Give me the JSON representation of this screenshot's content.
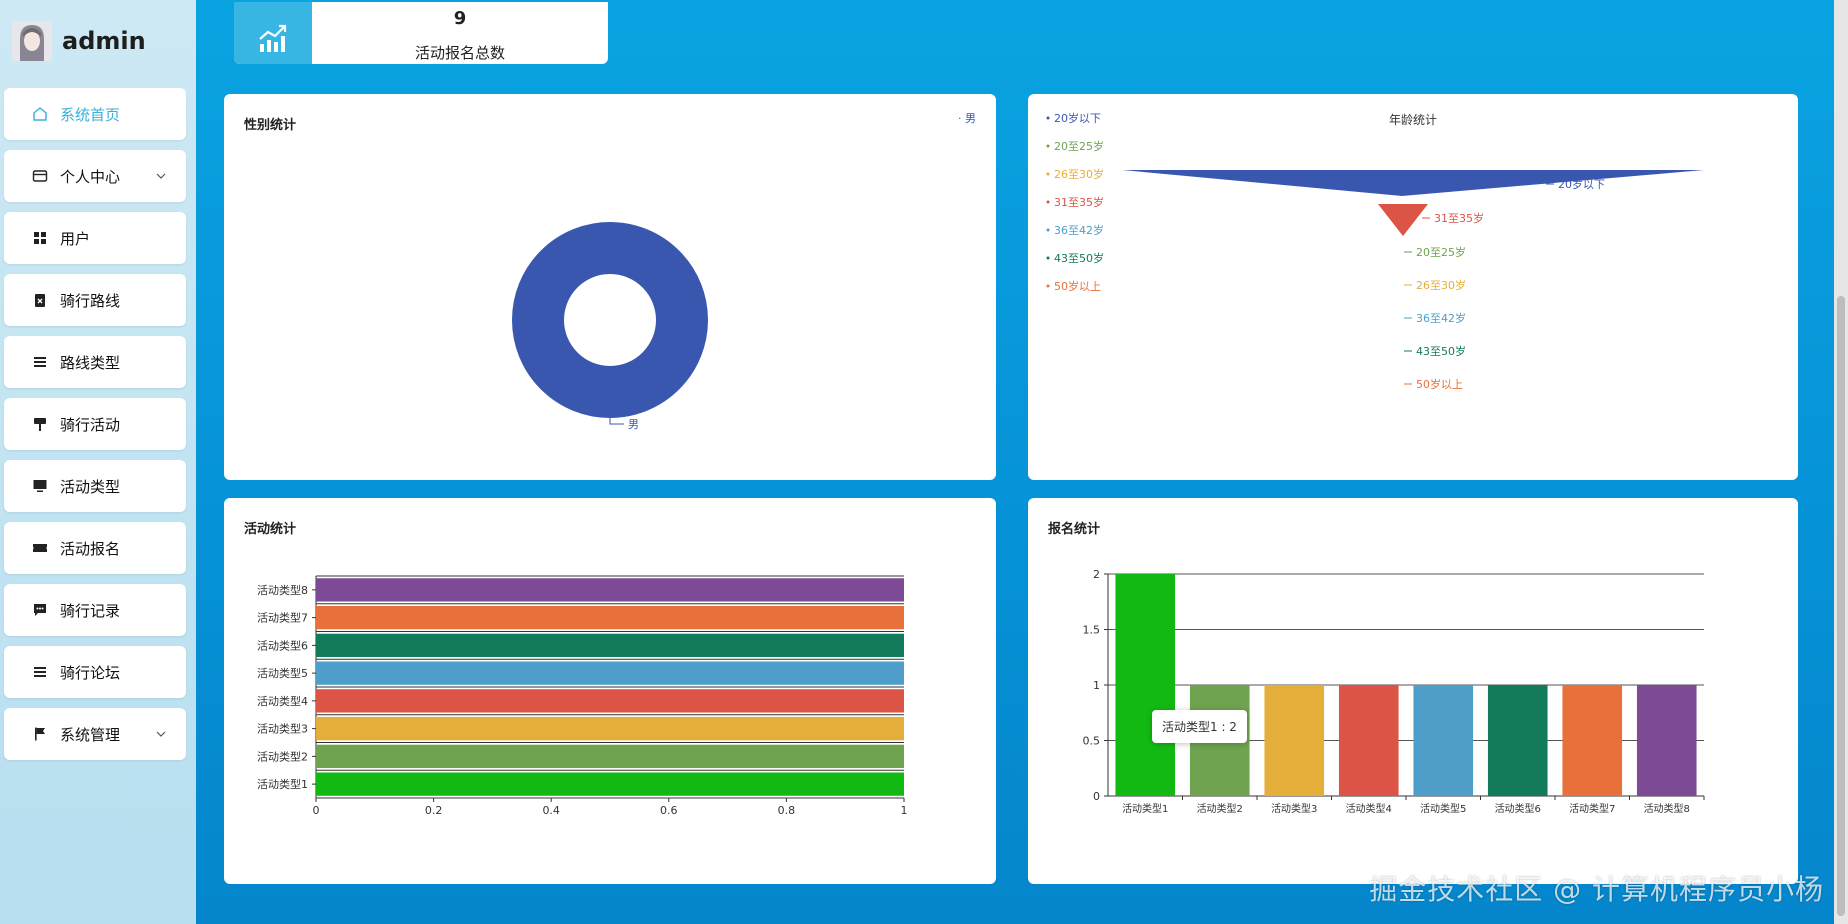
{
  "app": {
    "user_name": "admin"
  },
  "sidebar": {
    "items": [
      {
        "label": "系统首页",
        "icon": "home-icon",
        "active": true
      },
      {
        "label": "个人中心",
        "icon": "id-card-icon",
        "expandable": true
      },
      {
        "label": "用户",
        "icon": "grid-icon"
      },
      {
        "label": "骑行路线",
        "icon": "clipboard-x-icon"
      },
      {
        "label": "路线类型",
        "icon": "list-icon"
      },
      {
        "label": "骑行活动",
        "icon": "paint-roller-icon"
      },
      {
        "label": "活动类型",
        "icon": "monitor-icon"
      },
      {
        "label": "活动报名",
        "icon": "ticket-icon"
      },
      {
        "label": "骑行记录",
        "icon": "chat-bubble-icon"
      },
      {
        "label": "骑行论坛",
        "icon": "list-icon"
      },
      {
        "label": "系统管理",
        "icon": "flag-icon",
        "expandable": true
      }
    ]
  },
  "stat": {
    "value": "9",
    "label": "活动报名总数",
    "icon": "chart-trend-icon"
  },
  "gender_chart": {
    "title": "性别统计",
    "legend": "男",
    "slice_label": "男",
    "chart_data": {
      "type": "pie",
      "categories": [
        "男"
      ],
      "values": [
        1
      ]
    },
    "color": "#3a57b0"
  },
  "age_chart": {
    "title": "年龄统计",
    "legend": [
      "20岁以下",
      "20至25岁",
      "26至30岁",
      "31至35岁",
      "36至42岁",
      "43至50岁",
      "50岁以上"
    ],
    "legend_colors": [
      "#3a57b0",
      "#6fa34f",
      "#e5ad3a",
      "#db5446",
      "#4e9ec9",
      "#147a5c",
      "#e8703a"
    ],
    "labels": [
      "20岁以下",
      "31至35岁",
      "20至25岁",
      "26至30岁",
      "36至42岁",
      "43至50岁",
      "50岁以上"
    ],
    "label_colors": [
      "#3a57b0",
      "#db5446",
      "#6fa34f",
      "#e5ad3a",
      "#4e9ec9",
      "#147a5c",
      "#e8703a"
    ]
  },
  "activity_chart": {
    "title": "活动统计",
    "chart_data": {
      "type": "bar",
      "orientation": "horizontal",
      "categories": [
        "活动类型1",
        "活动类型2",
        "活动类型3",
        "活动类型4",
        "活动类型5",
        "活动类型6",
        "活动类型7",
        "活动类型8"
      ],
      "values": [
        1,
        1,
        1,
        1,
        1,
        1,
        1,
        1
      ],
      "xlim": [
        0,
        1
      ],
      "xticks": [
        "0",
        "0.2",
        "0.4",
        "0.6",
        "0.8",
        "1"
      ]
    },
    "colors": [
      "#13b913",
      "#6fa34f",
      "#e5ad3a",
      "#db5446",
      "#4e9ec9",
      "#147a5c",
      "#e8703a",
      "#7d4a96"
    ]
  },
  "signup_chart": {
    "title": "报名统计",
    "tooltip": "活动类型1 : 2",
    "chart_data": {
      "type": "bar",
      "categories": [
        "活动类型1",
        "活动类型2",
        "活动类型3",
        "活动类型4",
        "活动类型5",
        "活动类型6",
        "活动类型7",
        "活动类型8"
      ],
      "values": [
        2,
        1,
        1,
        1,
        1,
        1,
        1,
        1
      ],
      "ylim": [
        0,
        2
      ],
      "yticks": [
        "0",
        "0.5",
        "1",
        "1.5",
        "2"
      ],
      "grid": true
    },
    "colors": [
      "#13b913",
      "#6fa34f",
      "#e5ad3a",
      "#db5446",
      "#4e9ec9",
      "#147a5c",
      "#e8703a",
      "#7d4a96"
    ]
  },
  "watermark": "掘金技术社区 @ 计算机程序员小杨"
}
